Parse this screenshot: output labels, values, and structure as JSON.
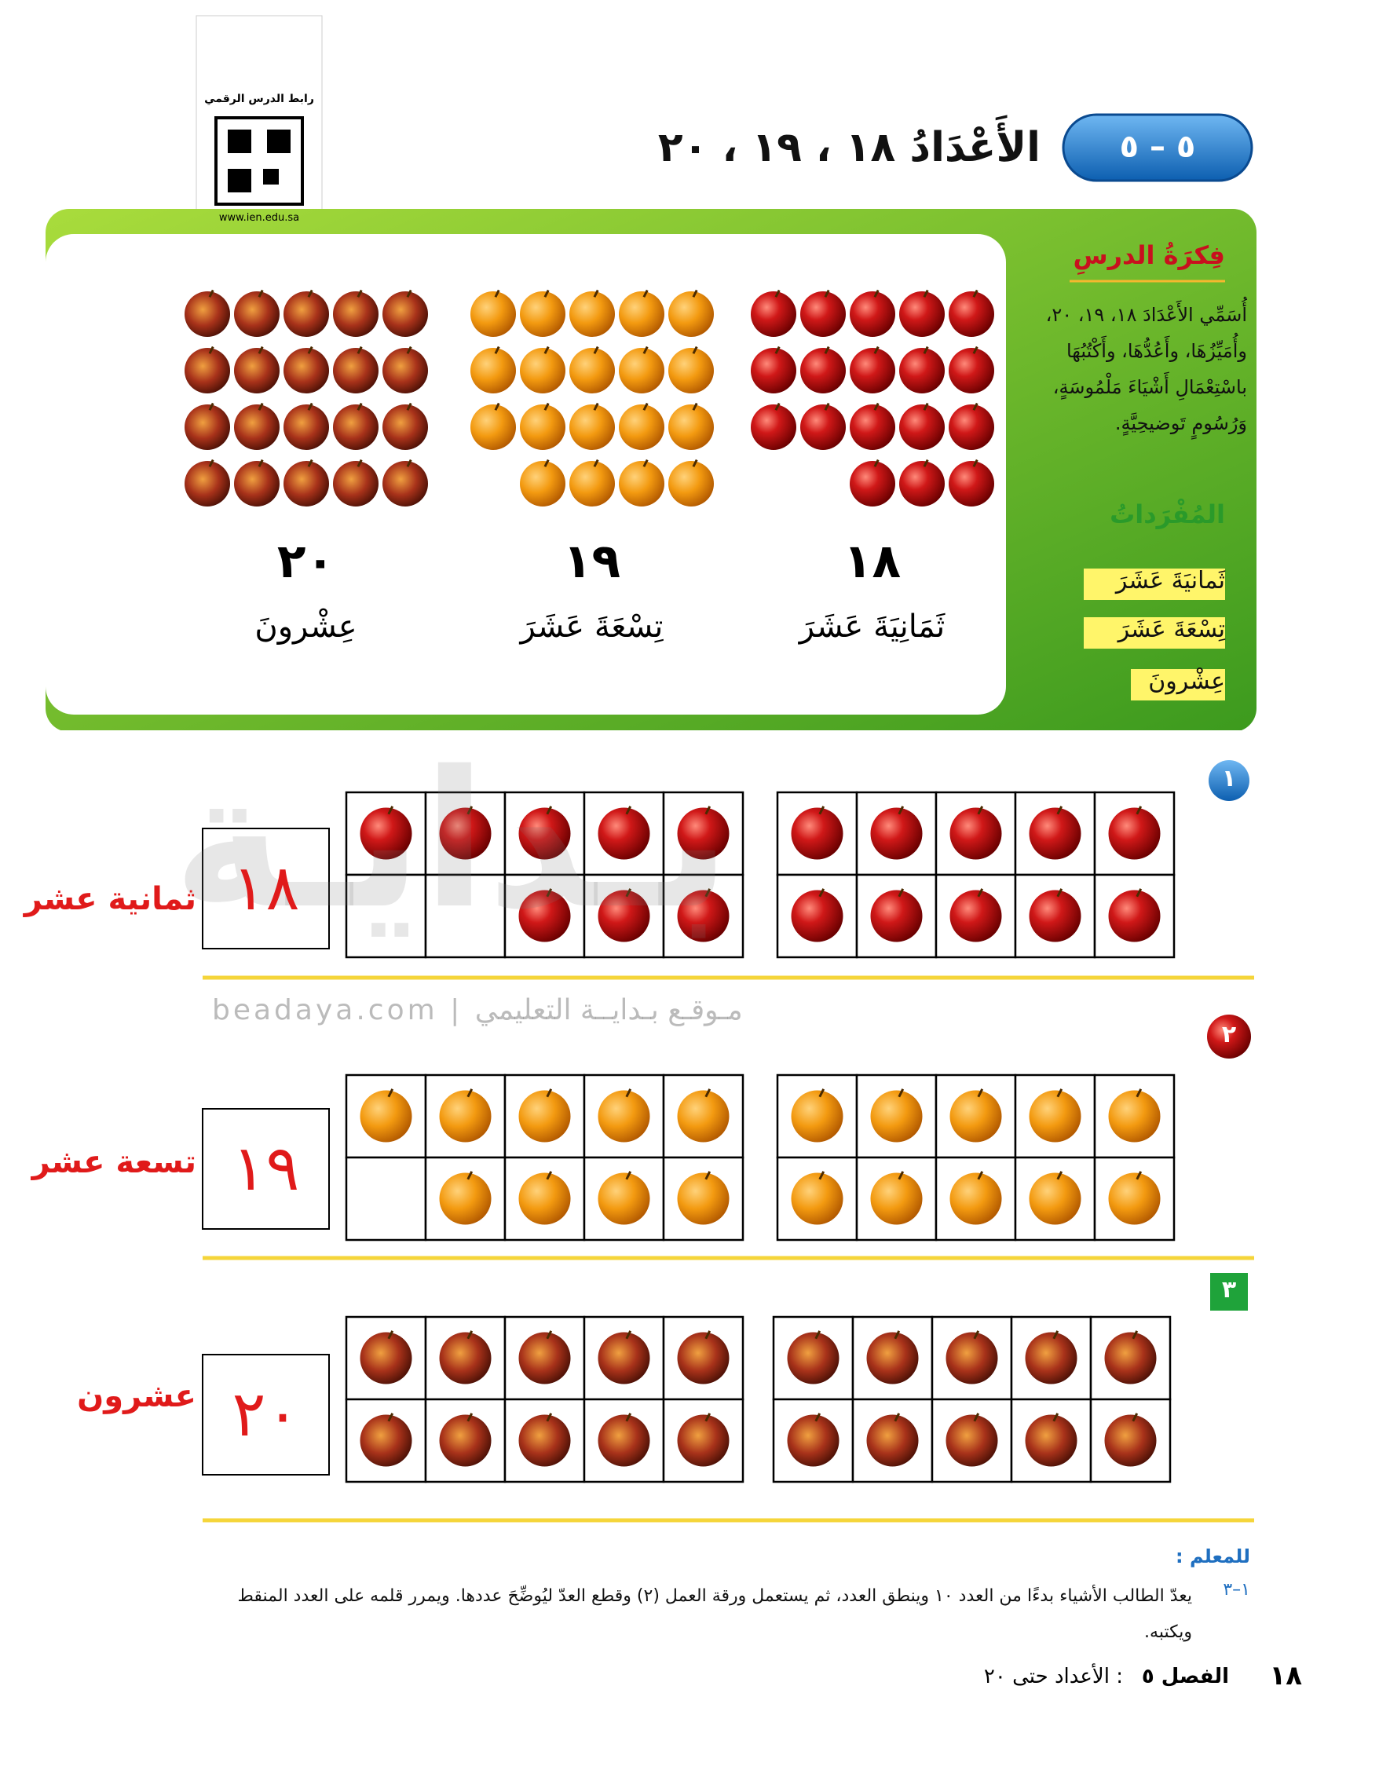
{
  "qr": {
    "label": "رابط الدرس الرقمي",
    "url": "www.ien.edu.sa"
  },
  "lesson": {
    "number": "٥ – ٥",
    "title": "الأَعْدَادُ ١٨ ، ١٩ ، ٢٠"
  },
  "idea": {
    "heading": "فِكرَةُ الدرسِ",
    "text": "أُسَمِّي الأَعْدَادَ ١٨، ١٩، ٢٠، وأُمَيِّزُهَا، وأَعُدُّهَا، وأَكْتُبُهَا باسْتِعْمَالِ أَشْيَاءَ مَلْمُوسَةٍ، وَرُسُومٍ تَوضيحِيَّةٍ."
  },
  "vocabulary": {
    "heading": "المُفْرَداتُ",
    "items": [
      "ثَمانيَةَ عَشَرَ",
      "تِسْعَةَ عَشَرَ",
      "عِشْرونَ"
    ]
  },
  "groups": [
    {
      "number": "١٨",
      "word": "ثَمَانِيَةَ عَشَرَ"
    },
    {
      "number": "١٩",
      "word": "تِسْعَةَ عَشَرَ"
    },
    {
      "number": "٢٠",
      "word": "عِشْرونَ"
    }
  ],
  "watermark": {
    "logo": "بـدايـة",
    "text": "beadaya.com | مـوقـع بـدايــة التعليمي"
  },
  "exercises": [
    {
      "marker": "١",
      "digits": "١٨",
      "label": "ثمانية عشر"
    },
    {
      "marker": "٢",
      "digits": "١٩",
      "label": "تسعة عشر"
    },
    {
      "marker": "٣",
      "digits": "٢٠",
      "label": "عشرون"
    }
  ],
  "teacher": {
    "heading": "للمعلم :",
    "number": "١–٣",
    "note": "يعدّ الطالب الأشياء بدءًا من العدد ١٠ وينطق العدد، ثم يستعمل ورقة العمل (٢) وقطع العدّ ليُوضِّحَ عددها. ويمرر قلمه على العدد المنقط ويكتبه."
  },
  "footer": {
    "page": "١٨",
    "chapter": "الفصل ٥",
    "chapter_title": ": الأعداد حتى ٢٠"
  }
}
